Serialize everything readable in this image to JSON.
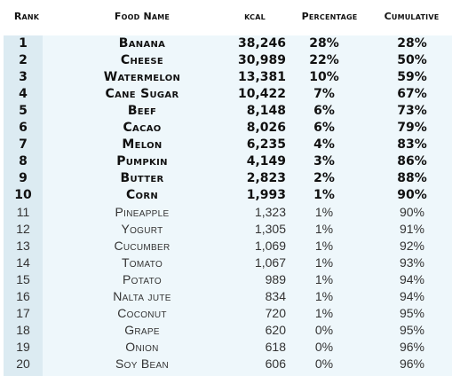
{
  "header": {
    "rank": "Rank",
    "food_name": "Food Name",
    "kcal": "kcal",
    "percentage": "Percentage",
    "cumulative": "Cumulative"
  },
  "rows": [
    {
      "rank": "1",
      "name": "Banana",
      "kcal": "38,246",
      "pct": "28%",
      "cum": "28%"
    },
    {
      "rank": "2",
      "name": "Cheese",
      "kcal": "30,989",
      "pct": "22%",
      "cum": "50%"
    },
    {
      "rank": "3",
      "name": "Watermelon",
      "kcal": "13,381",
      "pct": "10%",
      "cum": "59%"
    },
    {
      "rank": "4",
      "name": "Cane Sugar",
      "kcal": "10,422",
      "pct": "7%",
      "cum": "67%"
    },
    {
      "rank": "5",
      "name": "Beef",
      "kcal": "8,148",
      "pct": "6%",
      "cum": "73%"
    },
    {
      "rank": "6",
      "name": "Cacao",
      "kcal": "8,026",
      "pct": "6%",
      "cum": "79%"
    },
    {
      "rank": "7",
      "name": "Melon",
      "kcal": "6,235",
      "pct": "4%",
      "cum": "83%"
    },
    {
      "rank": "8",
      "name": "Pumpkin",
      "kcal": "4,149",
      "pct": "3%",
      "cum": "86%"
    },
    {
      "rank": "9",
      "name": "Butter",
      "kcal": "2,823",
      "pct": "2%",
      "cum": "88%"
    },
    {
      "rank": "10",
      "name": "Corn",
      "kcal": "1,993",
      "pct": "1%",
      "cum": "90%"
    },
    {
      "rank": "11",
      "name": "Pineapple",
      "kcal": "1,323",
      "pct": "1%",
      "cum": "90%"
    },
    {
      "rank": "12",
      "name": "Yogurt",
      "kcal": "1,305",
      "pct": "1%",
      "cum": "91%"
    },
    {
      "rank": "13",
      "name": "Cucumber",
      "kcal": "1,069",
      "pct": "1%",
      "cum": "92%"
    },
    {
      "rank": "14",
      "name": "Tomato",
      "kcal": "1,067",
      "pct": "1%",
      "cum": "93%"
    },
    {
      "rank": "15",
      "name": "Potato",
      "kcal": "989",
      "pct": "1%",
      "cum": "94%"
    },
    {
      "rank": "16",
      "name": "Nalta jute",
      "kcal": "834",
      "pct": "1%",
      "cum": "94%"
    },
    {
      "rank": "17",
      "name": "Coconut",
      "kcal": "720",
      "pct": "1%",
      "cum": "95%"
    },
    {
      "rank": "18",
      "name": "Grape",
      "kcal": "620",
      "pct": "0%",
      "cum": "95%"
    },
    {
      "rank": "19",
      "name": "Onion",
      "kcal": "618",
      "pct": "0%",
      "cum": "96%"
    },
    {
      "rank": "20",
      "name": "Soy Bean",
      "kcal": "606",
      "pct": "0%",
      "cum": "96%"
    }
  ],
  "colors": {
    "rank_column_bg": "#dcebf2",
    "table_body_bg": "#eef7fb"
  }
}
